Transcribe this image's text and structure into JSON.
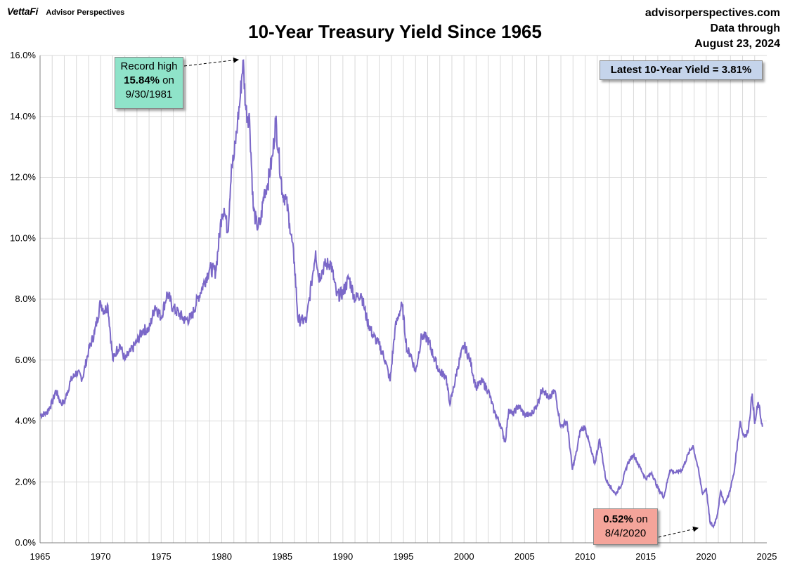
{
  "header": {
    "brand": "VettaFi",
    "sub_brand": "Advisor Perspectives",
    "site": "advisorperspectives.com",
    "data_through_label": "Data through",
    "data_through_date": "August 23, 2024"
  },
  "annotations": {
    "high_line1": "Record high",
    "high_value": "15.84%",
    "high_on": " on",
    "high_date": "9/30/1981",
    "low_value": "0.52%",
    "low_on": " on",
    "low_date": "8/4/2020",
    "latest": "Latest 10-Year Yield = 3.81%"
  },
  "colors": {
    "line": "#7b68c8",
    "grid": "#d9d9d9"
  },
  "chart_data": {
    "type": "line",
    "title": "10-Year Treasury Yield Since 1965",
    "xlabel": "",
    "ylabel": "",
    "xlim": [
      1965,
      2025
    ],
    "ylim": [
      0,
      16
    ],
    "grid": true,
    "x_ticks": [
      1965,
      1970,
      1975,
      1980,
      1985,
      1990,
      1995,
      2000,
      2005,
      2010,
      2015,
      2020,
      2025
    ],
    "y_ticks": [
      "0.0%",
      "2.0%",
      "4.0%",
      "6.0%",
      "8.0%",
      "10.0%",
      "12.0%",
      "14.0%",
      "16.0%"
    ],
    "series": [
      {
        "x": [
          1965.0,
          1965.5,
          1966.0,
          1966.3,
          1966.7,
          1967.0,
          1967.5,
          1968.0,
          1968.5,
          1969.0,
          1969.5,
          1970.0,
          1970.3,
          1970.6,
          1971.0,
          1971.3,
          1971.6,
          1972.0,
          1972.5,
          1973.0,
          1973.5,
          1974.0,
          1974.5,
          1975.0,
          1975.5,
          1976.0,
          1976.5,
          1977.0,
          1977.5,
          1978.0,
          1978.5,
          1979.0,
          1979.5,
          1980.0,
          1980.2,
          1980.5,
          1980.8,
          1981.0,
          1981.3,
          1981.5,
          1981.75,
          1982.0,
          1982.3,
          1982.6,
          1982.9,
          1983.2,
          1983.5,
          1983.8,
          1984.2,
          1984.45,
          1984.7,
          1985.0,
          1985.3,
          1985.6,
          1986.0,
          1986.3,
          1986.6,
          1987.0,
          1987.4,
          1987.75,
          1988.0,
          1988.5,
          1989.0,
          1989.5,
          1990.0,
          1990.5,
          1991.0,
          1991.5,
          1992.0,
          1992.5,
          1993.0,
          1993.5,
          1993.9,
          1994.3,
          1994.6,
          1994.9,
          1995.3,
          1995.6,
          1996.0,
          1996.5,
          1997.0,
          1997.5,
          1998.0,
          1998.5,
          1998.8,
          1999.0,
          1999.5,
          2000.0,
          2000.5,
          2001.0,
          2001.5,
          2002.0,
          2002.5,
          2003.0,
          2003.4,
          2003.7,
          2004.0,
          2004.5,
          2005.0,
          2005.5,
          2006.0,
          2006.5,
          2007.0,
          2007.5,
          2008.0,
          2008.5,
          2008.95,
          2009.3,
          2009.6,
          2010.0,
          2010.5,
          2010.8,
          2011.2,
          2011.7,
          2012.0,
          2012.5,
          2013.0,
          2013.5,
          2014.0,
          2014.5,
          2015.0,
          2015.5,
          2016.0,
          2016.5,
          2017.0,
          2017.5,
          2018.0,
          2018.5,
          2018.9,
          2019.3,
          2019.7,
          2020.0,
          2020.3,
          2020.59,
          2020.9,
          2021.2,
          2021.5,
          2021.8,
          2022.0,
          2022.3,
          2022.5,
          2022.8,
          2023.0,
          2023.3,
          2023.5,
          2023.8,
          2024.0,
          2024.3,
          2024.64
        ],
        "values": [
          4.2,
          4.25,
          4.6,
          5.0,
          4.6,
          4.6,
          5.3,
          5.6,
          5.4,
          6.3,
          6.9,
          7.9,
          7.6,
          7.8,
          6.0,
          6.3,
          6.5,
          6.0,
          6.3,
          6.6,
          7.0,
          7.0,
          7.8,
          7.4,
          8.2,
          7.7,
          7.5,
          7.3,
          7.4,
          8.0,
          8.5,
          9.0,
          8.9,
          10.8,
          11.0,
          10.2,
          12.4,
          12.6,
          13.8,
          14.5,
          15.84,
          14.2,
          13.9,
          11.0,
          10.4,
          10.5,
          11.5,
          11.8,
          12.7,
          13.9,
          12.8,
          11.5,
          11.3,
          10.5,
          9.2,
          7.3,
          7.3,
          7.3,
          8.5,
          9.6,
          8.7,
          9.1,
          9.2,
          8.1,
          8.2,
          8.7,
          8.0,
          8.2,
          7.3,
          6.8,
          6.5,
          6.0,
          5.3,
          7.0,
          7.5,
          7.8,
          6.3,
          6.2,
          5.6,
          6.8,
          6.7,
          6.1,
          5.6,
          5.5,
          4.6,
          4.8,
          5.8,
          6.5,
          6.0,
          5.1,
          5.3,
          5.0,
          4.3,
          3.9,
          3.3,
          4.4,
          4.2,
          4.5,
          4.2,
          4.2,
          4.5,
          5.1,
          4.7,
          5.0,
          3.8,
          4.0,
          2.4,
          3.0,
          3.7,
          3.8,
          3.0,
          2.6,
          3.4,
          2.1,
          1.9,
          1.6,
          1.9,
          2.6,
          2.9,
          2.5,
          2.1,
          2.3,
          1.8,
          1.5,
          2.4,
          2.3,
          2.4,
          2.9,
          3.2,
          2.5,
          1.6,
          1.8,
          0.7,
          0.52,
          0.9,
          1.7,
          1.3,
          1.5,
          1.8,
          2.3,
          3.0,
          4.0,
          3.6,
          3.5,
          3.8,
          4.9,
          3.9,
          4.6,
          3.81
        ]
      }
    ]
  }
}
